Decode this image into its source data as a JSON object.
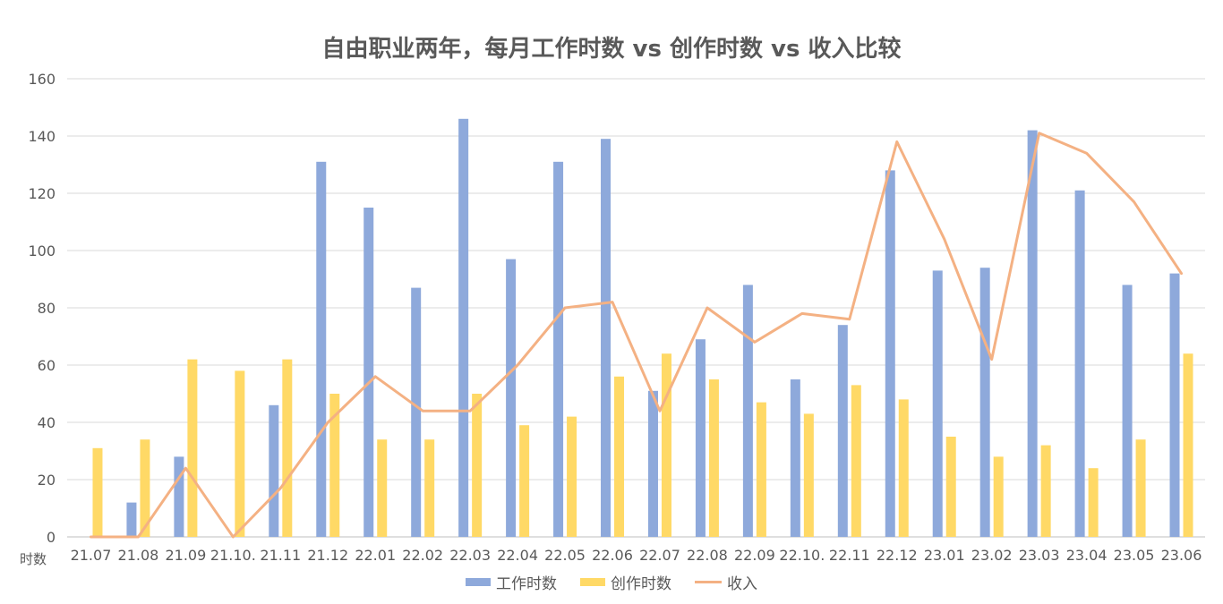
{
  "chart_data": {
    "type": "bar",
    "title": "自由职业两年，每月工作时数 vs 创作时数 vs 收入比较",
    "ylabel": "时数",
    "ylim": [
      0,
      160
    ],
    "yticks": [
      0,
      20,
      40,
      60,
      80,
      100,
      120,
      140,
      160
    ],
    "grid": true,
    "legend_position": "bottom",
    "categories": [
      "21.07",
      "21.08",
      "21.09",
      "21.10.",
      "21.11",
      "21.12",
      "22.01",
      "22.02",
      "22.03",
      "22.04",
      "22.05",
      "22.06",
      "22.07",
      "22.08",
      "22.09",
      "22.10.",
      "22.11",
      "22.12",
      "23.01",
      "23.02",
      "23.03",
      "23.04",
      "23.05",
      "23.06"
    ],
    "series": [
      {
        "name": "工作时数",
        "type": "bar",
        "color": "#8EA9DB",
        "values": [
          0,
          12,
          28,
          0,
          46,
          131,
          115,
          87,
          146,
          97,
          131,
          139,
          51,
          69,
          88,
          55,
          74,
          128,
          93,
          94,
          142,
          121,
          88,
          92
        ]
      },
      {
        "name": "创作时数",
        "type": "bar",
        "color": "#FFD966",
        "values": [
          31,
          34,
          62,
          58,
          62,
          50,
          34,
          34,
          50,
          39,
          42,
          56,
          64,
          55,
          47,
          43,
          53,
          48,
          35,
          28,
          32,
          24,
          34,
          64
        ]
      },
      {
        "name": "收入",
        "type": "line",
        "color": "#F4B183",
        "values": [
          0,
          0,
          24,
          0,
          17,
          40,
          56,
          44,
          44,
          60,
          80,
          82,
          44,
          80,
          68,
          78,
          76,
          138,
          104,
          62,
          141,
          134,
          117,
          92
        ]
      }
    ]
  }
}
